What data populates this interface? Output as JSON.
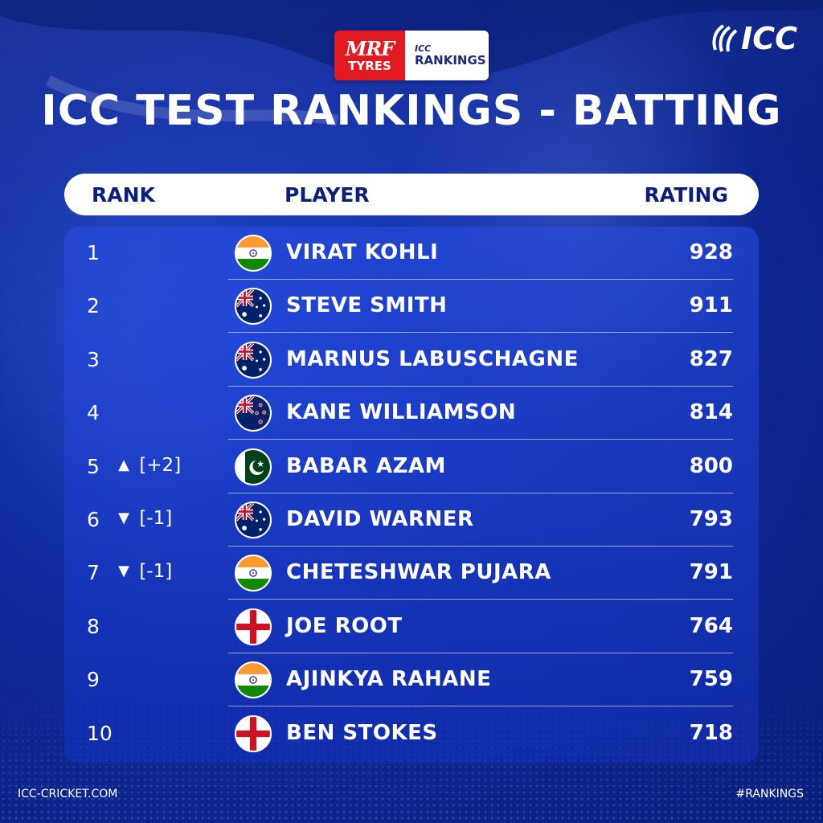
{
  "brand": {
    "sponsor_top": "MRF",
    "sponsor_bottom": "TYRES",
    "rankings_top": "ICC",
    "rankings_bottom": "RANKINGS",
    "icc_logo_text": "ICC"
  },
  "title": "ICC TEST RANKINGS - BATTING",
  "header": {
    "rank": "RANK",
    "player": "PLAYER",
    "rating": "RATING"
  },
  "rows": [
    {
      "rank": "1",
      "move_arrow": "",
      "move_text": "",
      "flag": "india",
      "player": "VIRAT KOHLI",
      "rating": "928"
    },
    {
      "rank": "2",
      "move_arrow": "",
      "move_text": "",
      "flag": "australia",
      "player": "STEVE SMITH",
      "rating": "911"
    },
    {
      "rank": "3",
      "move_arrow": "",
      "move_text": "",
      "flag": "australia",
      "player": "MARNUS LABUSCHAGNE",
      "rating": "827"
    },
    {
      "rank": "4",
      "move_arrow": "",
      "move_text": "",
      "flag": "new-zealand",
      "player": "KANE WILLIAMSON",
      "rating": "814"
    },
    {
      "rank": "5",
      "move_arrow": "▲",
      "move_text": "[+2]",
      "flag": "pakistan",
      "player": "BABAR AZAM",
      "rating": "800"
    },
    {
      "rank": "6",
      "move_arrow": "▼",
      "move_text": "[-1]",
      "flag": "australia",
      "player": "DAVID WARNER",
      "rating": "793"
    },
    {
      "rank": "7",
      "move_arrow": "▼",
      "move_text": "[-1]",
      "flag": "india",
      "player": "CHETESHWAR PUJARA",
      "rating": "791"
    },
    {
      "rank": "8",
      "move_arrow": "",
      "move_text": "",
      "flag": "england",
      "player": "JOE ROOT",
      "rating": "764"
    },
    {
      "rank": "9",
      "move_arrow": "",
      "move_text": "",
      "flag": "india",
      "player": "AJINKYA RAHANE",
      "rating": "759"
    },
    {
      "rank": "10",
      "move_arrow": "",
      "move_text": "",
      "flag": "england",
      "player": "BEN STOKES",
      "rating": "718"
    }
  ],
  "footer": {
    "left": "ICC-CRICKET.COM",
    "right": "#RANKINGS"
  },
  "colors": {
    "background": "#0f2a9c",
    "header_text": "#0a1f7a",
    "sponsor_red": "#e21b23"
  }
}
